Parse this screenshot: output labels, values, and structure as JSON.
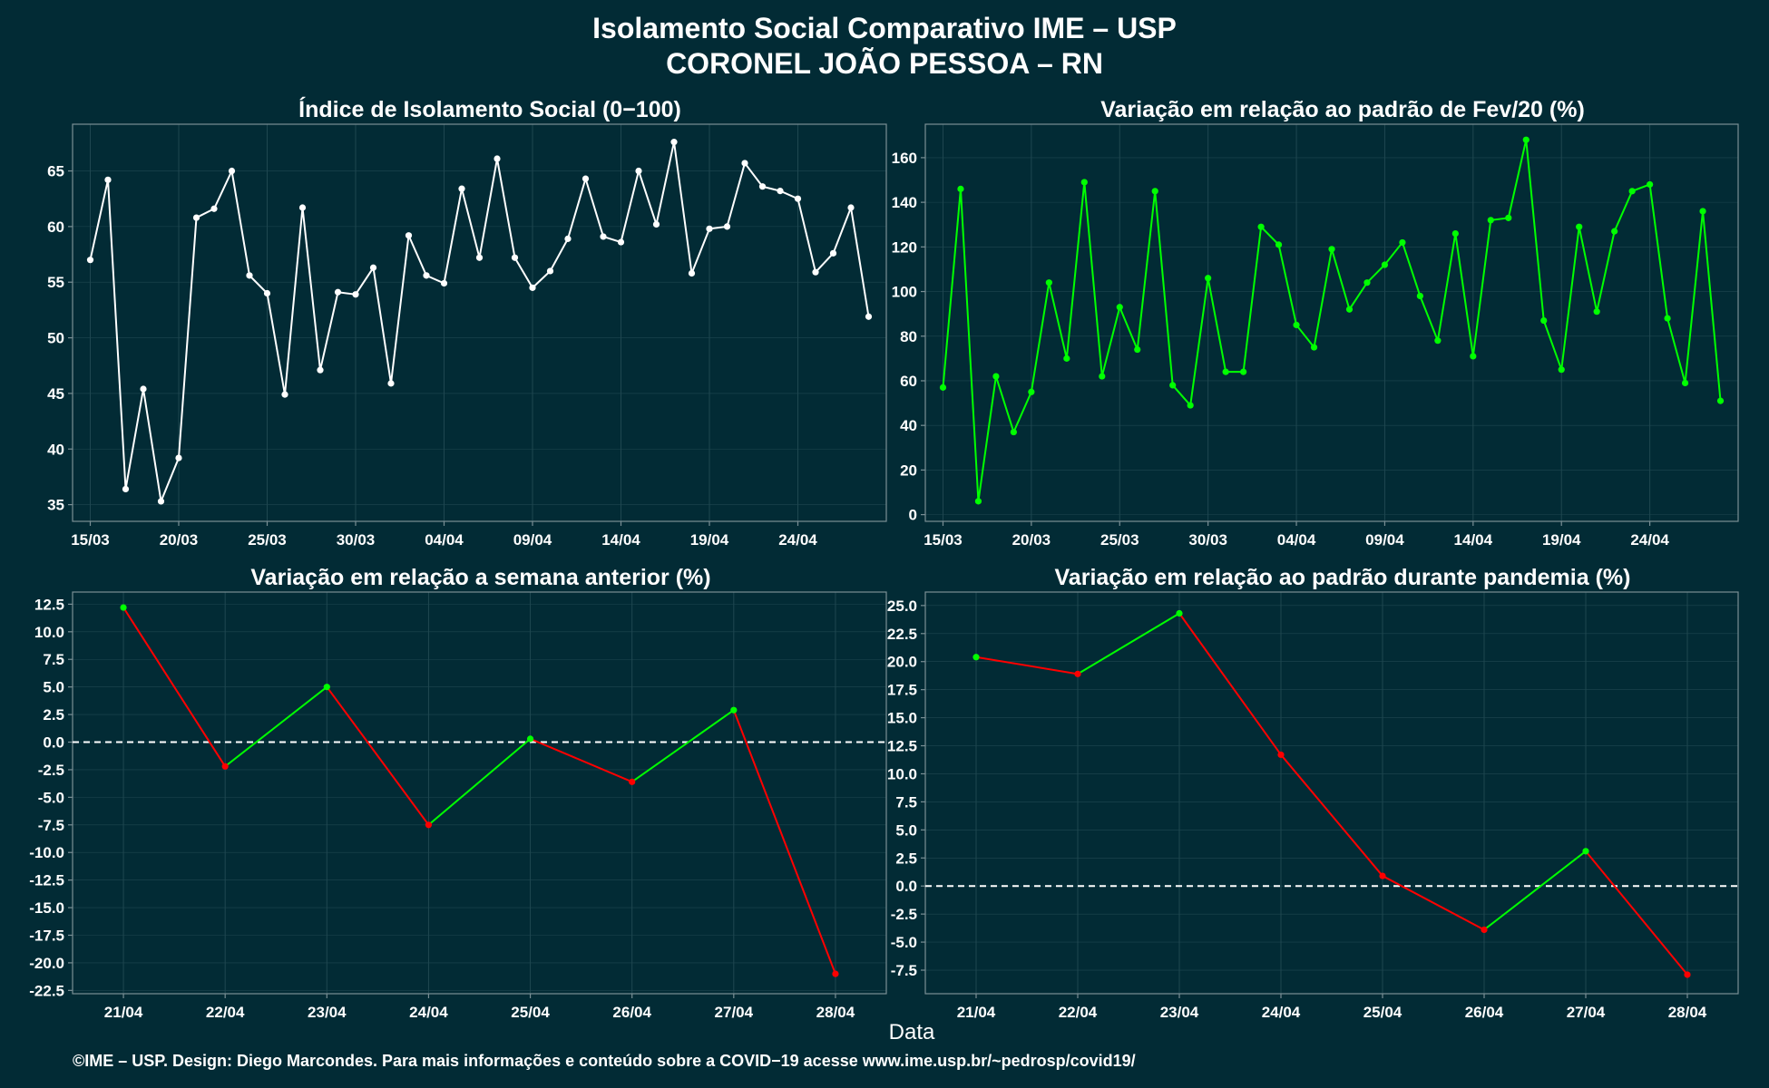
{
  "figure": {
    "title_line1": "Isolamento Social Comparativo IME – USP",
    "title_line2": "CORONEL JOÃO PESSOA – RN",
    "xlabel": "Data",
    "credit": "©IME – USP. Design: Diego Marcondes. Para mais informações e conteúdo sobre a COVID−19 acesse www.ime.usp.br/~pedrosp/covid19/",
    "colors": {
      "background": "#022b35",
      "white": "#ffffff",
      "green": "#00ff00",
      "red": "#ff0000",
      "frame": "#7a8f95",
      "grid": "#1f4750"
    }
  },
  "chart_data": [
    {
      "type": "line",
      "title": "Índice de Isolamento Social (0−100)",
      "x_start": "15/03",
      "x_ticks": [
        "15/03",
        "20/03",
        "25/03",
        "30/03",
        "04/04",
        "09/04",
        "14/04",
        "19/04",
        "24/04"
      ],
      "xlim": [
        "14/03",
        "29/04"
      ],
      "ylim": [
        33.5,
        69.2
      ],
      "yticks": [
        35,
        40,
        45,
        50,
        55,
        60,
        65
      ],
      "grid": true,
      "color": "#ffffff",
      "values": [
        57.0,
        64.2,
        36.4,
        45.4,
        35.3,
        39.2,
        60.8,
        61.6,
        65.0,
        55.6,
        54.0,
        44.9,
        61.7,
        47.1,
        54.1,
        53.9,
        56.3,
        45.9,
        59.2,
        55.6,
        54.9,
        63.4,
        57.2,
        66.1,
        57.2,
        54.5,
        56.0,
        58.9,
        64.3,
        59.1,
        58.6,
        65.0,
        60.2,
        67.6,
        55.8,
        59.8,
        60.0,
        65.7,
        63.6,
        63.2,
        62.5,
        55.9,
        57.6,
        61.7,
        51.9
      ]
    },
    {
      "type": "line",
      "title": "Variação em relação ao padrão de Fev/20 (%)",
      "x_start": "15/03",
      "x_ticks": [
        "15/03",
        "20/03",
        "25/03",
        "30/03",
        "04/04",
        "09/04",
        "14/04",
        "19/04",
        "24/04"
      ],
      "xlim": [
        "14/03",
        "29/04"
      ],
      "ylim": [
        -3,
        175
      ],
      "yticks": [
        0,
        20,
        40,
        60,
        80,
        100,
        120,
        140,
        160
      ],
      "grid": true,
      "color": "#00ff00",
      "values": [
        57,
        146,
        6,
        62,
        37,
        55,
        104,
        70,
        149,
        62,
        93,
        74,
        145,
        58,
        49,
        106,
        64,
        64,
        129,
        121,
        85,
        75,
        119,
        92,
        104,
        112,
        122,
        98,
        78,
        126,
        71,
        132,
        133,
        168,
        87,
        65,
        129,
        91,
        127,
        145,
        148,
        88,
        59,
        136,
        51
      ]
    },
    {
      "type": "line",
      "title": "Variação em relação a semana anterior (%)",
      "categories": [
        "21/04",
        "22/04",
        "23/04",
        "24/04",
        "25/04",
        "26/04",
        "27/04",
        "28/04"
      ],
      "values": [
        12.2,
        -2.2,
        5.0,
        -7.5,
        0.3,
        -3.6,
        2.9,
        -21.0
      ],
      "ylim": [
        -22.8,
        13.6
      ],
      "yticks": [
        12.5,
        10.0,
        7.5,
        5.0,
        2.5,
        0.0,
        -2.5,
        -5.0,
        -7.5,
        -10.0,
        -12.5,
        -15.0,
        -17.5,
        -20.0,
        -22.5
      ],
      "reference_line": 0,
      "grid": true,
      "colors": {
        "increase": "#00ff00",
        "decrease": "#ff0000"
      }
    },
    {
      "type": "line",
      "title": "Variação em relação ao padrão durante pandemia (%)",
      "categories": [
        "21/04",
        "22/04",
        "23/04",
        "24/04",
        "25/04",
        "26/04",
        "27/04",
        "28/04"
      ],
      "values": [
        20.4,
        18.9,
        24.3,
        11.7,
        0.9,
        -3.9,
        3.1,
        -7.9
      ],
      "ylim": [
        -9.6,
        26.2
      ],
      "yticks": [
        25.0,
        22.5,
        20.0,
        17.5,
        15.0,
        12.5,
        10.0,
        7.5,
        5.0,
        2.5,
        0.0,
        -2.5,
        -5.0,
        -7.5
      ],
      "reference_line": 0,
      "grid": true,
      "colors": {
        "increase": "#00ff00",
        "decrease": "#ff0000"
      }
    }
  ]
}
